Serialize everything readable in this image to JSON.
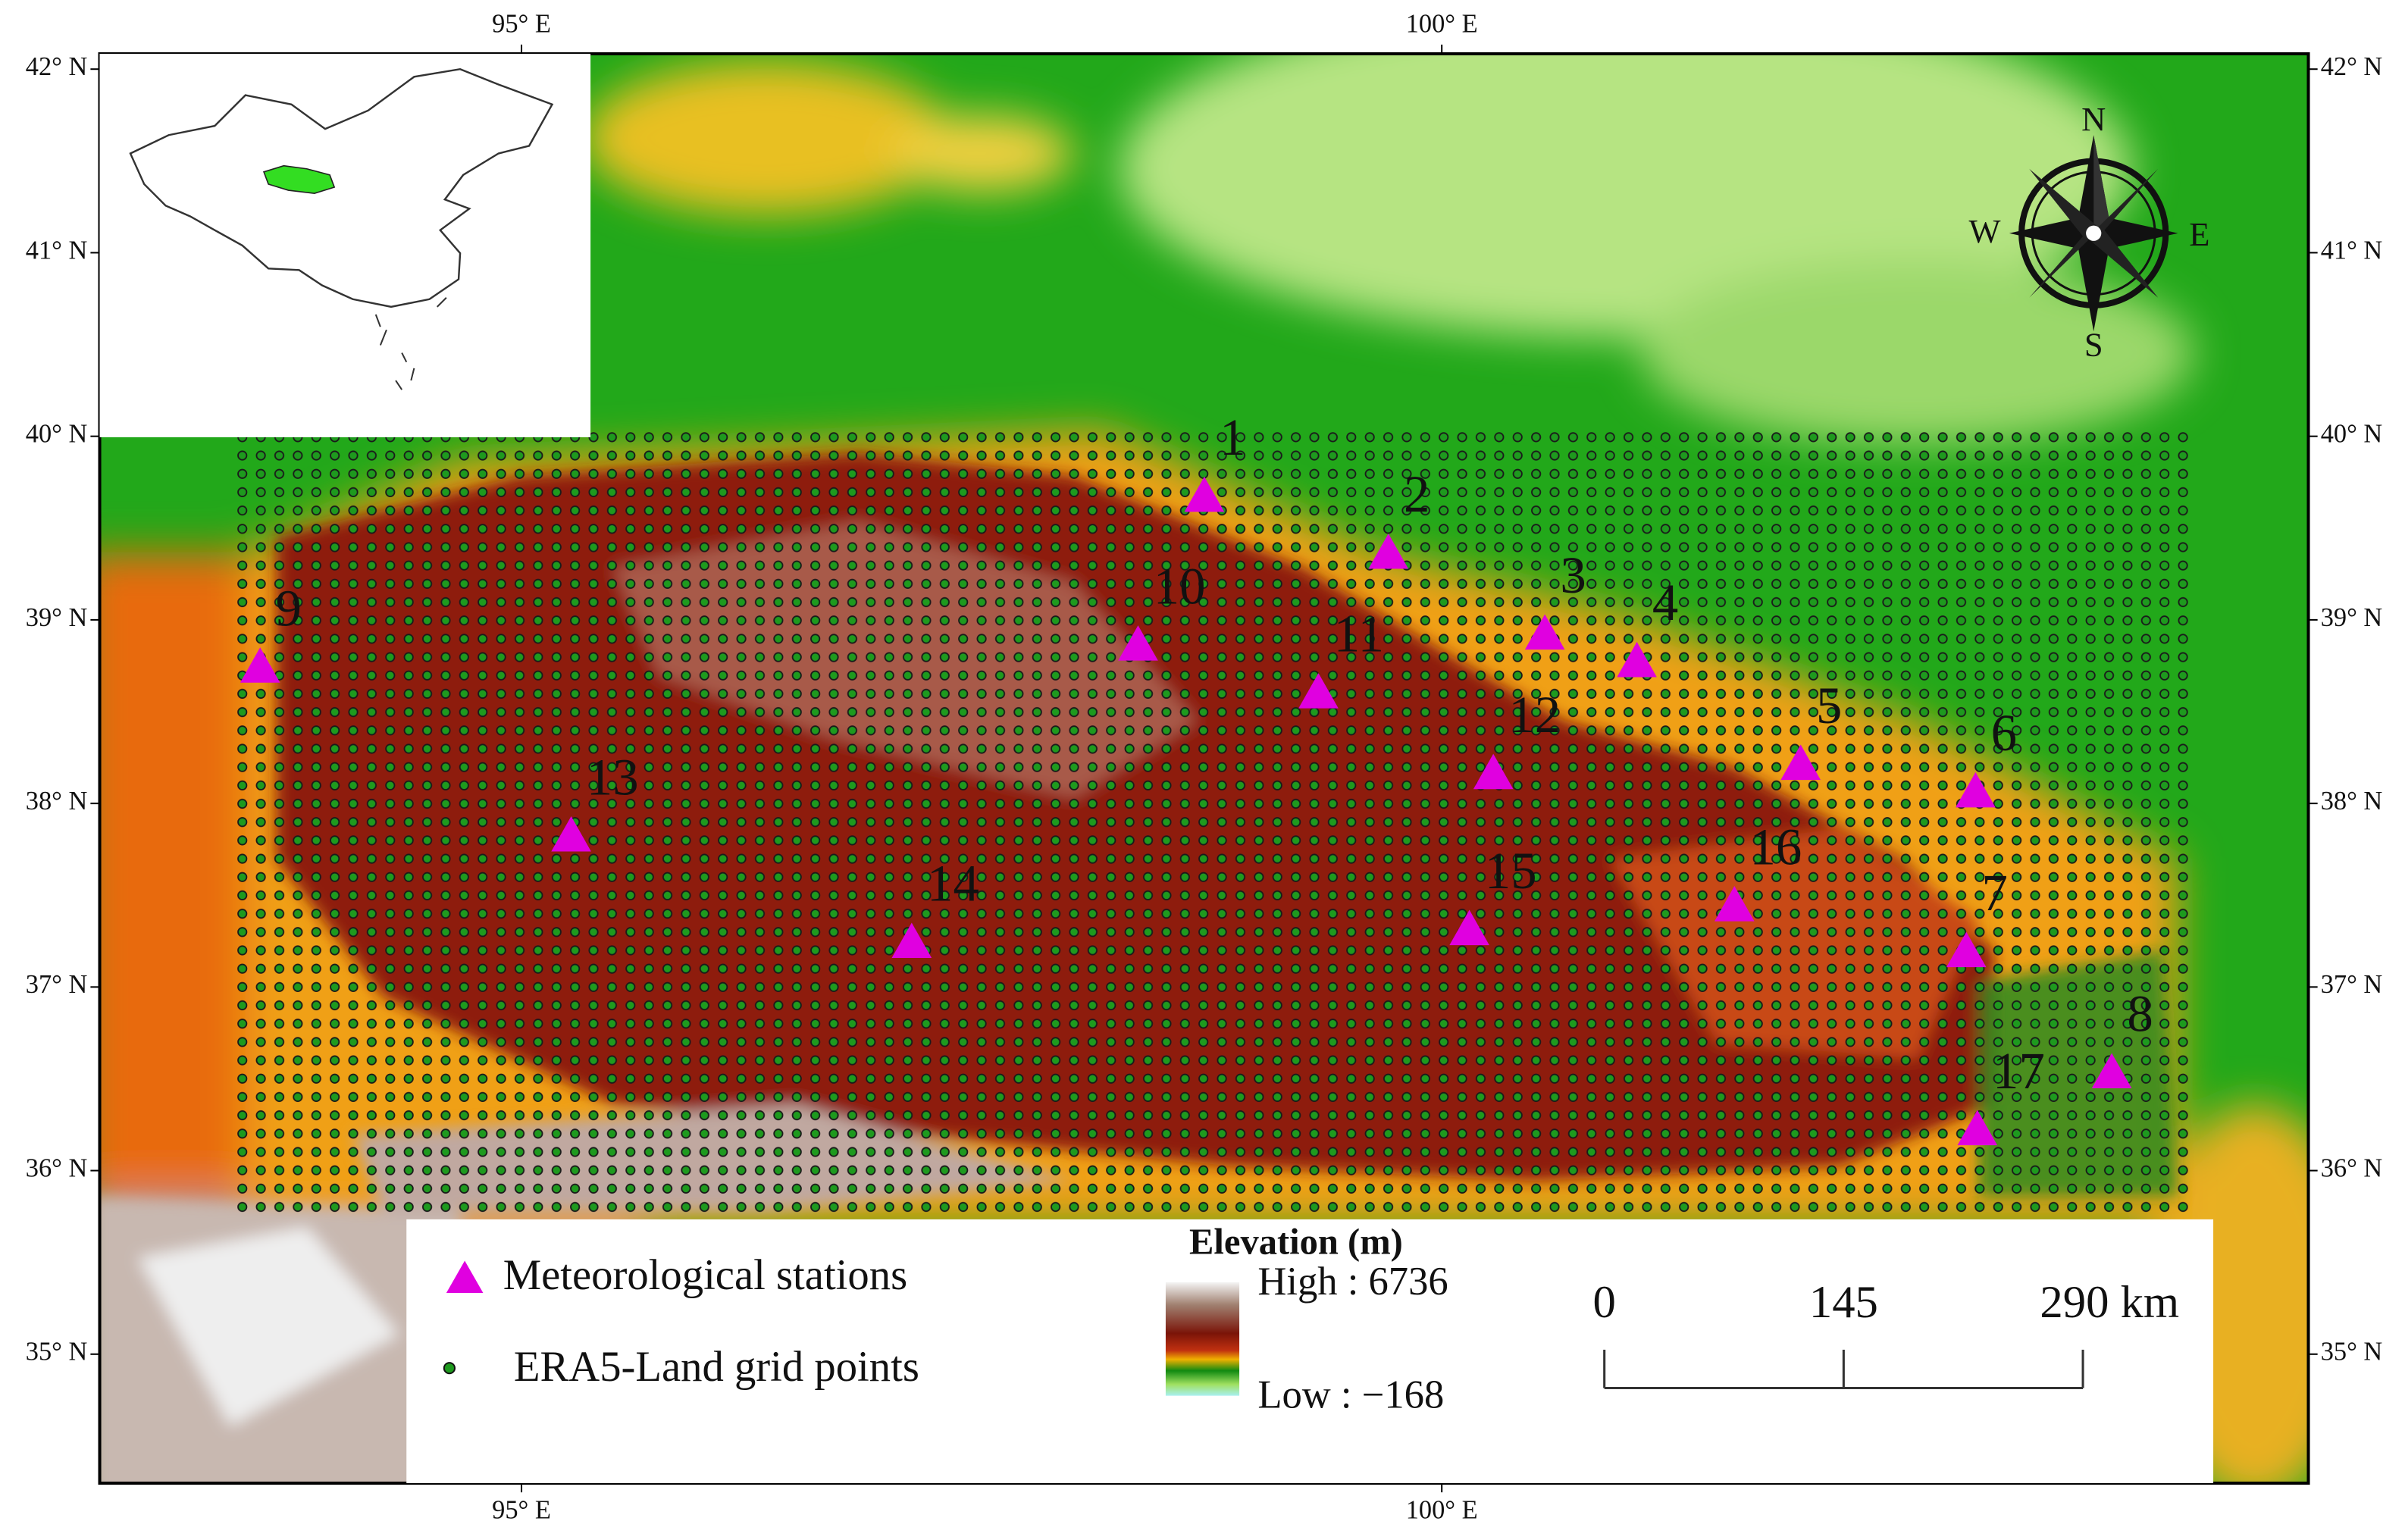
{
  "map": {
    "lon_ticks": [
      {
        "value": 95,
        "label": "95° E"
      },
      {
        "value": 100,
        "label": "100° E"
      }
    ],
    "lat_ticks": [
      {
        "value": 35,
        "label": "35° N"
      },
      {
        "value": 36,
        "label": "36° N"
      },
      {
        "value": 37,
        "label": "37° N"
      },
      {
        "value": 38,
        "label": "38° N"
      },
      {
        "value": 39,
        "label": "39° N"
      },
      {
        "value": 40,
        "label": "40° N"
      },
      {
        "value": 41,
        "label": "41° N"
      },
      {
        "value": 42,
        "label": "42° N"
      }
    ],
    "stations": [
      {
        "label": "1",
        "lon": 98.71,
        "lat": 39.68
      },
      {
        "label": "2",
        "lon": 99.71,
        "lat": 39.37
      },
      {
        "label": "3",
        "lon": 100.56,
        "lat": 38.93
      },
      {
        "label": "4",
        "lon": 101.06,
        "lat": 38.78
      },
      {
        "label": "5",
        "lon": 101.95,
        "lat": 38.22
      },
      {
        "label": "6",
        "lon": 102.9,
        "lat": 38.07
      },
      {
        "label": "7",
        "lon": 102.85,
        "lat": 37.2
      },
      {
        "label": "8",
        "lon": 103.64,
        "lat": 36.54
      },
      {
        "label": "9",
        "lon": 93.58,
        "lat": 38.75
      },
      {
        "label": "10",
        "lon": 98.35,
        "lat": 38.87
      },
      {
        "label": "11",
        "lon": 99.33,
        "lat": 38.61
      },
      {
        "label": "12",
        "lon": 100.28,
        "lat": 38.17
      },
      {
        "label": "13",
        "lon": 95.27,
        "lat": 37.83
      },
      {
        "label": "14",
        "lon": 97.12,
        "lat": 37.25
      },
      {
        "label": "15",
        "lon": 100.15,
        "lat": 37.32
      },
      {
        "label": "16",
        "lon": 101.59,
        "lat": 37.45
      },
      {
        "label": "17",
        "lon": 102.91,
        "lat": 36.23
      }
    ],
    "compass": {
      "north": "N",
      "south": "S",
      "east": "E",
      "west": "W"
    },
    "legend": {
      "stations": "Meteorological stations",
      "grid_points": "ERA5-Land grid points",
      "elevation_title": "Elevation (m)",
      "high": "High : 6736",
      "low": "Low : −168"
    },
    "scale_bar": {
      "ticks": [
        0,
        145,
        {
          "value": 290,
          "label": "290 km"
        }
      ]
    }
  }
}
